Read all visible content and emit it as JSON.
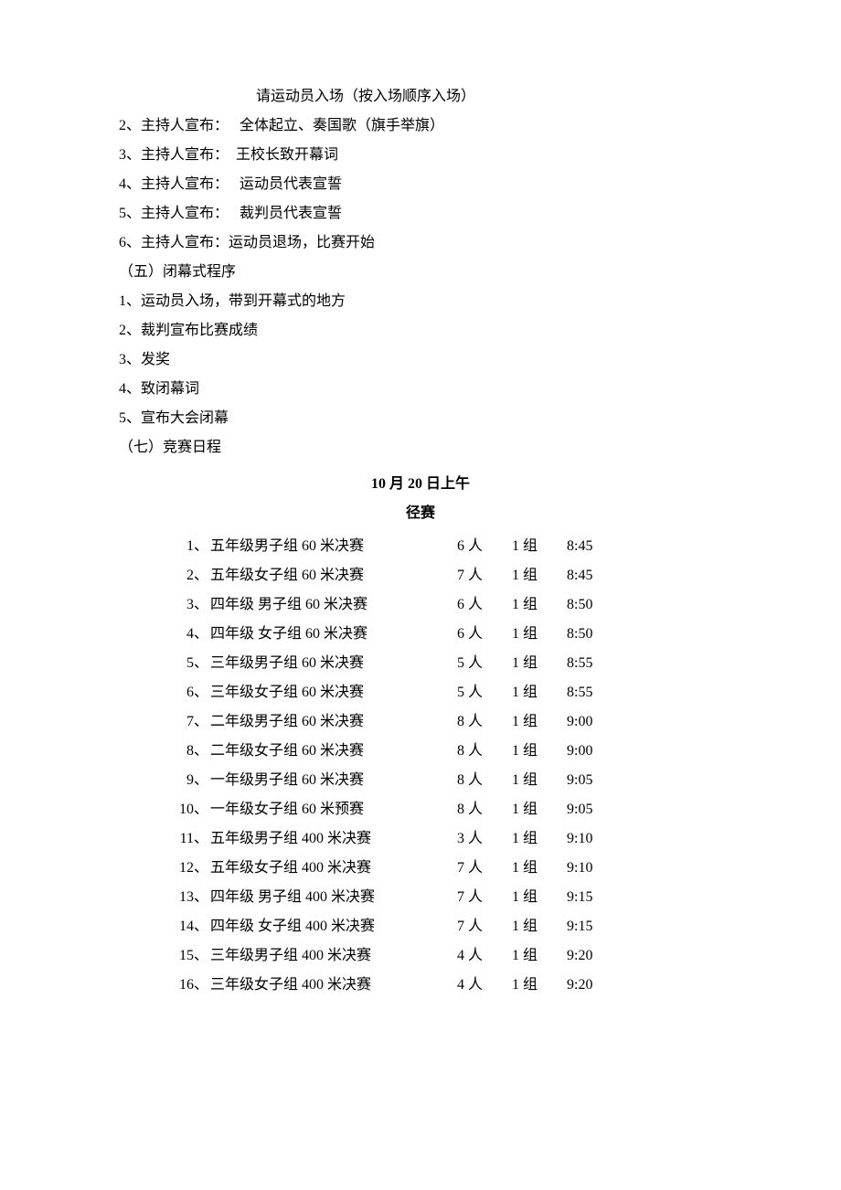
{
  "header_lines": [
    {
      "text": "请运动员入场（按入场顺序入场）",
      "indent": true
    },
    {
      "text": "2、主持人宣布：　 全体起立、奏国歌（旗手举旗）",
      "indent": false
    },
    {
      "text": "3、主持人宣布：　王校长致开幕词",
      "indent": false
    },
    {
      "text": "4、主持人宣布：　 运动员代表宣誓",
      "indent": false
    },
    {
      "text": "5、主持人宣布：　 裁判员代表宣誓",
      "indent": false
    },
    {
      "text": "6、主持人宣布：运动员退场，比赛开始",
      "indent": false
    },
    {
      "text": "（五）闭幕式程序",
      "indent": false
    },
    {
      "text": "1、运动员入场，带到开幕式的地方",
      "indent": false
    },
    {
      "text": "2、裁判宣布比赛成绩",
      "indent": false
    },
    {
      "text": "3、发奖",
      "indent": false
    },
    {
      "text": "4、致闭幕词",
      "indent": false
    },
    {
      "text": "5、宣布大会闭幕",
      "indent": false
    },
    {
      "text": "（七）竞赛日程",
      "indent": false
    }
  ],
  "section_title": {
    "date": "10 月 20 日上午",
    "sub": "径赛"
  },
  "schedule": {
    "people_suffix": " 人",
    "group_suffix": " 组",
    "rows": [
      {
        "idx": "1",
        "desc": "五年级男子组 60 米决赛",
        "people": "6",
        "group": "1",
        "time": "8:45"
      },
      {
        "idx": "2",
        "desc": "五年级女子组 60 米决赛",
        "people": "7",
        "group": "1",
        "time": "8:45"
      },
      {
        "idx": "3",
        "desc": "四年级 男子组 60 米决赛",
        "people": "6",
        "group": "1",
        "time": "8:50"
      },
      {
        "idx": "4",
        "desc": "四年级 女子组 60 米决赛",
        "people": "6",
        "group": "1",
        "time": "8:50"
      },
      {
        "idx": "5",
        "desc": " 三年级男子组 60 米决赛",
        "people": "5",
        "group": "1",
        "time": "8:55"
      },
      {
        "idx": "6",
        "desc": " 三年级女子组 60 米决赛",
        "people": "5",
        "group": "1",
        "time": "8:55"
      },
      {
        "idx": "7",
        "desc": "二年级男子组 60 米决赛",
        "people": "8",
        "group": "1",
        "time": "9:00"
      },
      {
        "idx": "8",
        "desc": "二年级女子组 60 米决赛",
        "people": "8",
        "group": "1",
        "time": "9:00"
      },
      {
        "idx": "9",
        "desc": "一年级男子组 60 米决赛",
        "people": "8",
        "group": "1",
        "time": "9:05"
      },
      {
        "idx": "10",
        "desc": "一年级女子组 60 米预赛",
        "people": "8",
        "group": "1",
        "time": "9:05"
      },
      {
        "idx": "11",
        "desc": "五年级男子组 400 米决赛",
        "people": "3",
        "group": "1",
        "time": "9:10"
      },
      {
        "idx": "12",
        "desc": "五年级女子组 400 米决赛",
        "people": "7",
        "group": "1",
        "time": "9:10"
      },
      {
        "idx": "13",
        "desc": "四年级 男子组 400 米决赛",
        "people": "7",
        "group": "1",
        "time": "9:15"
      },
      {
        "idx": "14",
        "desc": "四年级 女子组 400 米决赛",
        "people": "7",
        "group": "1",
        "time": "9:15"
      },
      {
        "idx": "15",
        "desc": " 三年级男子组 400 米决赛",
        "people": "4",
        "group": "1",
        "time": "9:20"
      },
      {
        "idx": "16",
        "desc": " 三年级女子组 400 米决赛",
        "people": "4",
        "group": "1",
        "time": "9:20"
      }
    ]
  }
}
